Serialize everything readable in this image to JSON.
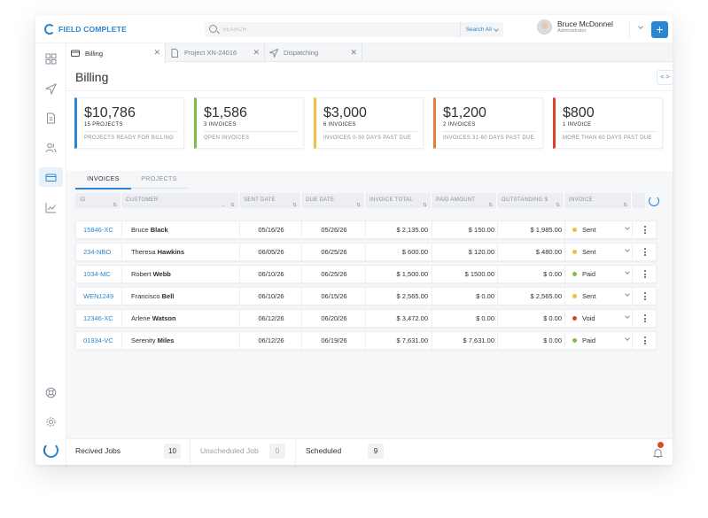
{
  "app": {
    "logo_text": "FIELD COMPLETE"
  },
  "search": {
    "placeholder": "SEARCH",
    "scope": "Search All"
  },
  "user": {
    "name": "Bruce McDonnel",
    "role": "Administrator"
  },
  "sidebar": {
    "items": [
      "dashboard",
      "dispatch",
      "documents",
      "users",
      "billing",
      "reports"
    ],
    "active": "billing",
    "bottom": [
      "help",
      "settings"
    ]
  },
  "tabs": [
    {
      "label": "Billing",
      "icon": "billing-icon",
      "active": true
    },
    {
      "label": "Project XN-24016",
      "icon": "document-icon",
      "active": false
    },
    {
      "label": "Dispatching",
      "icon": "send-icon",
      "active": false
    }
  ],
  "page": {
    "title": "Billing",
    "code_button": "<·>"
  },
  "cards": [
    {
      "amount": "$10,786",
      "count": "15 PROJECTS",
      "desc": "PROJECTS READY FOR BILLING",
      "color": "#2a86d1"
    },
    {
      "amount": "$1,586",
      "count": "3 INVOICES",
      "desc": "OPEN INVOICES",
      "color": "#7cbf4a"
    },
    {
      "amount": "$3,000",
      "count": "6 INVOICES",
      "desc": "INVOICES 0-30 DAYS PAST DUE",
      "color": "#f2c040"
    },
    {
      "amount": "$1,200",
      "count": "2 INVOICES",
      "desc": "INVOICES 31-60 DAYS PAST DUE",
      "color": "#ec7b3a"
    },
    {
      "amount": "$800",
      "count": "1 INVOICE",
      "desc": "MORE THAN 60 DAYS PAST DUE",
      "color": "#d9432b"
    }
  ],
  "subtabs": [
    {
      "label": "INVOICES",
      "active": true
    },
    {
      "label": "PROJECTS",
      "active": false
    }
  ],
  "table": {
    "columns": [
      "ID",
      "CUSTOMER",
      "SENT DATE",
      "DUE DATE",
      "INVOICE TOTAL",
      "PAID AMOUNT",
      "OUTSTANDING $",
      "INVOICE"
    ],
    "rows": [
      {
        "id": "15846-XC",
        "first": "Bruce",
        "last": "Black",
        "sent": "05/16/26",
        "due": "05/26/26",
        "total": "$ 2,135.00",
        "paid": "$ 150.00",
        "outstanding": "$ 1,985.00",
        "status": "Sent",
        "status_color": "#f2c040"
      },
      {
        "id": "234-NBO",
        "first": "Theresa",
        "last": "Hawkins",
        "sent": "06/05/26",
        "due": "06/25/26",
        "total": "$ 600.00",
        "paid": "$ 120.00",
        "outstanding": "$ 480.00",
        "status": "Sent",
        "status_color": "#f2c040"
      },
      {
        "id": "1034-MC",
        "first": "Robert",
        "last": "Webb",
        "sent": "06/10/26",
        "due": "06/25/26",
        "total": "$ 1,500.00",
        "paid": "$ 1500.00",
        "outstanding": "$ 0.00",
        "status": "Paid",
        "status_color": "#7cbf4a"
      },
      {
        "id": "WEN1249",
        "first": "Francisco",
        "last": "Bell",
        "sent": "06/10/26",
        "due": "06/15/26",
        "total": "$ 2,565.00",
        "paid": "$ 0.00",
        "outstanding": "$ 2,565.00",
        "status": "Sent",
        "status_color": "#f2c040"
      },
      {
        "id": "12346-XC",
        "first": "Arlene",
        "last": "Watson",
        "sent": "06/12/26",
        "due": "06/20/26",
        "total": "$ 3,472.00",
        "paid": "$ 0.00",
        "outstanding": "$ 0.00",
        "status": "Void",
        "status_color": "#d9432b"
      },
      {
        "id": "01934-VC",
        "first": "Serenity",
        "last": "Miles",
        "sent": "06/12/26",
        "due": "06/19/26",
        "total": "$ 7,631.00",
        "paid": "$ 7,631.00",
        "outstanding": "$ 0.00",
        "status": "Paid",
        "status_color": "#7cbf4a"
      }
    ]
  },
  "footer": {
    "received_label": "Recived Jobs",
    "received_count": "10",
    "unscheduled_label": "Unscheduled Job",
    "unscheduled_count": "0",
    "scheduled_label": "Scheduled",
    "scheduled_count": "9"
  },
  "colors": {
    "accent": "#2a86d1",
    "notification": "#e0492f"
  }
}
